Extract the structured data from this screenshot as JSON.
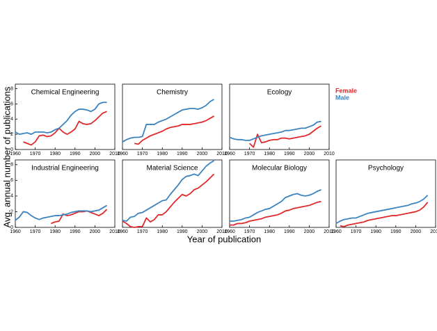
{
  "chart_data": [
    {
      "type": "line",
      "title": "Chemical Engineering",
      "ylabel": "Avg. annual number of publications",
      "xlabel": "Year of publication",
      "x": [
        1960,
        1962,
        1964,
        1966,
        1968,
        1970,
        1972,
        1974,
        1976,
        1978,
        1980,
        1982,
        1984,
        1986,
        1988,
        1990,
        1992,
        1994,
        1996,
        1998,
        2000,
        2002,
        2004,
        2006
      ],
      "series": [
        {
          "name": "Female",
          "color": "#e0282a",
          "values": [
            null,
            null,
            1.0,
            0.8,
            0.6,
            1.0,
            1.8,
            1.9,
            1.7,
            1.8,
            2.2,
            2.8,
            2.3,
            2.0,
            2.3,
            2.7,
            3.7,
            3.4,
            3.3,
            3.4,
            3.8,
            4.3,
            4.8,
            5.0
          ]
        },
        {
          "name": "Male",
          "color": "#3a83c0",
          "values": [
            2.3,
            2.0,
            2.1,
            2.2,
            2.0,
            2.3,
            2.3,
            2.3,
            2.2,
            2.3,
            2.6,
            2.8,
            3.3,
            3.8,
            4.5,
            5.0,
            5.3,
            5.3,
            5.2,
            5.0,
            5.3,
            6.0,
            6.2,
            6.2
          ]
        }
      ],
      "xlim": [
        1960,
        2010
      ],
      "ylim": [
        0,
        8.6
      ],
      "xticks": [
        1960,
        1970,
        1980,
        1990,
        2000,
        2010
      ],
      "yticks": [
        0,
        2,
        4,
        6,
        8
      ]
    },
    {
      "type": "line",
      "title": "Chemistry",
      "x": [
        1960,
        1962,
        1964,
        1966,
        1968,
        1970,
        1972,
        1974,
        1976,
        1978,
        1980,
        1982,
        1984,
        1986,
        1988,
        1990,
        1992,
        1994,
        1996,
        1998,
        2000,
        2002,
        2004,
        2006
      ],
      "series": [
        {
          "color": "#e0282a",
          "values": [
            null,
            null,
            null,
            0.8,
            0.7,
            1.2,
            1.5,
            1.8,
            2.0,
            2.2,
            2.4,
            2.7,
            2.9,
            3.0,
            3.1,
            3.3,
            3.3,
            3.3,
            3.4,
            3.5,
            3.6,
            3.8,
            4.1,
            4.4
          ]
        },
        {
          "color": "#3a83c0",
          "values": [
            1.0,
            1.3,
            1.5,
            1.6,
            1.6,
            1.7,
            3.3,
            3.3,
            3.3,
            3.6,
            3.8,
            4.0,
            4.3,
            4.6,
            4.9,
            5.2,
            5.3,
            5.4,
            5.4,
            5.3,
            5.5,
            5.8,
            6.3,
            6.6
          ]
        }
      ],
      "xlim": [
        1960,
        2010
      ],
      "ylim": [
        0,
        8.6
      ],
      "xticks": [
        1960,
        1970,
        1980,
        1990,
        2000,
        2010
      ]
    },
    {
      "type": "line",
      "title": "Ecology",
      "x": [
        1960,
        1962,
        1964,
        1966,
        1968,
        1970,
        1972,
        1974,
        1976,
        1978,
        1980,
        1982,
        1984,
        1986,
        1988,
        1990,
        1992,
        1994,
        1996,
        1998,
        2000,
        2002,
        2004,
        2006
      ],
      "series": [
        {
          "color": "#e0282a",
          "values": [
            null,
            null,
            null,
            null,
            null,
            0.8,
            0.3,
            2.0,
            0.9,
            1.0,
            1.2,
            1.3,
            1.3,
            1.5,
            1.5,
            1.4,
            1.5,
            1.6,
            1.7,
            1.8,
            2.0,
            2.4,
            2.8,
            3.1
          ]
        },
        {
          "color": "#3a83c0",
          "values": [
            1.6,
            1.4,
            1.3,
            1.3,
            1.2,
            1.2,
            1.4,
            1.6,
            1.8,
            1.9,
            2.0,
            2.1,
            2.2,
            2.3,
            2.5,
            2.5,
            2.6,
            2.7,
            2.8,
            2.8,
            3.0,
            3.2,
            3.6,
            3.7
          ]
        }
      ],
      "xlim": [
        1960,
        2010
      ],
      "ylim": [
        0,
        8.6
      ],
      "xticks": [
        1960,
        1970,
        1980,
        1990,
        2000,
        2010
      ]
    },
    {
      "type": "line",
      "title": "Industrial Engineering",
      "x": [
        1960,
        1962,
        1964,
        1966,
        1968,
        1970,
        1972,
        1974,
        1976,
        1978,
        1980,
        1982,
        1984,
        1986,
        1988,
        1990,
        1992,
        1994,
        1996,
        1998,
        2000,
        2002,
        2004,
        2006
      ],
      "series": [
        {
          "color": "#e0282a",
          "values": [
            null,
            null,
            null,
            null,
            null,
            null,
            null,
            null,
            null,
            0.5,
            0.7,
            0.8,
            1.7,
            1.5,
            1.6,
            1.8,
            2.0,
            2.0,
            2.1,
            1.9,
            1.7,
            1.5,
            1.8,
            2.3
          ]
        },
        {
          "color": "#3a83c0",
          "values": [
            0.9,
            1.3,
            2.0,
            1.9,
            1.5,
            1.2,
            1.0,
            1.2,
            1.3,
            1.4,
            1.5,
            1.5,
            1.6,
            1.7,
            1.9,
            2.0,
            2.1,
            2.1,
            2.1,
            2.0,
            2.1,
            2.2,
            2.5,
            2.8
          ]
        }
      ],
      "xlim": [
        1960,
        2010
      ],
      "ylim": [
        0,
        8.6
      ],
      "xticks": [
        1960,
        1970,
        1980,
        1990,
        2000,
        2010
      ],
      "yticks": [
        0,
        2,
        4,
        6,
        8
      ]
    },
    {
      "type": "line",
      "title": "Material Science",
      "x": [
        1960,
        1962,
        1964,
        1966,
        1968,
        1970,
        1972,
        1974,
        1976,
        1978,
        1980,
        1982,
        1984,
        1986,
        1988,
        1990,
        1992,
        1994,
        1996,
        1998,
        2000,
        2002,
        2004,
        2006
      ],
      "series": [
        {
          "color": "#e0282a",
          "values": [
            0.8,
            0.5,
            0.1,
            0.0,
            0.1,
            0.1,
            1.2,
            0.7,
            1.0,
            1.6,
            1.6,
            2.0,
            2.6,
            3.2,
            3.7,
            4.2,
            4.0,
            4.3,
            4.8,
            5.0,
            5.4,
            5.8,
            6.3,
            6.8
          ]
        },
        {
          "color": "#3a83c0",
          "values": [
            0.9,
            0.8,
            1.3,
            1.4,
            1.8,
            1.9,
            2.2,
            2.5,
            2.8,
            3.1,
            3.4,
            3.5,
            4.2,
            4.8,
            5.4,
            6.1,
            6.5,
            6.6,
            6.8,
            6.6,
            7.2,
            7.8,
            8.2,
            8.5
          ]
        }
      ],
      "xlim": [
        1960,
        2010
      ],
      "ylim": [
        0,
        8.6
      ],
      "xticks": [
        1960,
        1970,
        1980,
        1990,
        2000,
        2010
      ]
    },
    {
      "type": "line",
      "title": "Molecular Biology",
      "x": [
        1960,
        1962,
        1964,
        1966,
        1968,
        1970,
        1972,
        1974,
        1976,
        1978,
        1980,
        1982,
        1984,
        1986,
        1988,
        1990,
        1992,
        1994,
        1996,
        1998,
        2000,
        2002,
        2004,
        2006
      ],
      "series": [
        {
          "color": "#e0282a",
          "values": [
            0.3,
            0.3,
            0.5,
            0.5,
            0.6,
            0.8,
            0.9,
            1.0,
            1.1,
            1.3,
            1.4,
            1.5,
            1.6,
            1.8,
            2.1,
            2.2,
            2.4,
            2.5,
            2.6,
            2.7,
            2.8,
            3.0,
            3.2,
            3.3
          ]
        },
        {
          "color": "#3a83c0",
          "values": [
            0.8,
            0.8,
            0.9,
            1.0,
            1.2,
            1.3,
            1.6,
            1.9,
            2.1,
            2.3,
            2.4,
            2.7,
            3.0,
            3.3,
            3.8,
            4.0,
            4.2,
            4.3,
            4.1,
            4.0,
            4.1,
            4.3,
            4.6,
            4.8
          ]
        }
      ],
      "xlim": [
        1960,
        2010
      ],
      "ylim": [
        0,
        8.6
      ],
      "xticks": [
        1960,
        1970,
        1980,
        1990,
        2000,
        2010
      ]
    },
    {
      "type": "line",
      "title": "Psychology",
      "x": [
        1960,
        1962,
        1964,
        1966,
        1968,
        1970,
        1972,
        1974,
        1976,
        1978,
        1980,
        1982,
        1984,
        1986,
        1988,
        1990,
        1992,
        1994,
        1996,
        1998,
        2000,
        2002,
        2004,
        2006
      ],
      "series": [
        {
          "color": "#e0282a",
          "values": [
            null,
            0.2,
            0.1,
            0.3,
            0.4,
            0.5,
            0.6,
            0.7,
            0.9,
            1.0,
            1.1,
            1.2,
            1.3,
            1.4,
            1.5,
            1.5,
            1.6,
            1.7,
            1.8,
            1.9,
            2.0,
            2.2,
            2.6,
            3.2
          ]
        },
        {
          "color": "#3a83c0",
          "values": [
            0.5,
            0.8,
            1.0,
            1.1,
            1.2,
            1.2,
            1.4,
            1.6,
            1.8,
            1.9,
            2.0,
            2.1,
            2.2,
            2.3,
            2.4,
            2.5,
            2.6,
            2.7,
            2.8,
            3.0,
            3.1,
            3.3,
            3.6,
            4.1
          ]
        }
      ],
      "xlim": [
        1960,
        2010
      ],
      "ylim": [
        0,
        8.6
      ],
      "xticks": [
        1960,
        1970,
        1980,
        1990,
        2000,
        2010
      ]
    }
  ]
}
